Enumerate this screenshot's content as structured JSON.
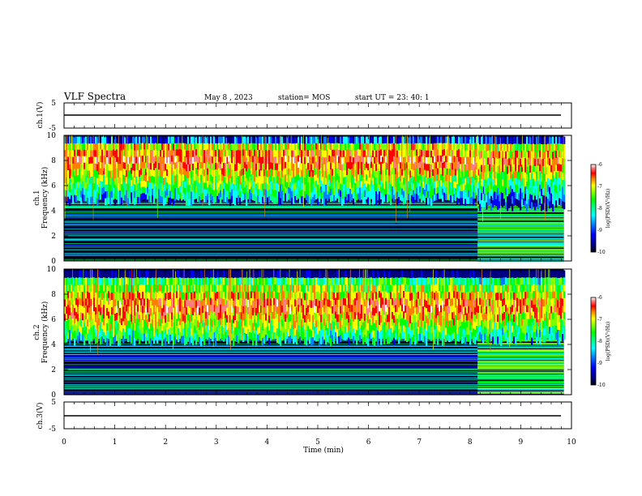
{
  "header": {
    "title": "VLF Spectra",
    "date": "May 8  , 2023",
    "station": "station= MOS",
    "start": "start  UT  =   23: 40: 1"
  },
  "chart_data": [
    {
      "type": "line",
      "panel": "ch1-waveform",
      "ylabel": "ch.1(V)",
      "ylim": [
        -5,
        5
      ],
      "yticks": [
        "5",
        "-5"
      ],
      "xlim": [
        0,
        10
      ],
      "series": [
        {
          "x": [
            0,
            9.8
          ],
          "y": [
            -0.6,
            -0.6
          ]
        }
      ]
    },
    {
      "type": "heatmap",
      "panel": "ch1-spectrogram",
      "ylabel": "ch.1\nFrequency (kHz)",
      "ylim": [
        0,
        10
      ],
      "yticks": [
        "0",
        "2",
        "4",
        "6",
        "8",
        "10"
      ],
      "xlim": [
        0,
        10
      ],
      "data_xmax": 9.85,
      "regime_change_min": 8.15,
      "band": {
        "before": [
          5,
          10
        ],
        "after": [
          4.5,
          10
        ]
      },
      "peak_kHz": 8.0,
      "colorbar": {
        "label": "log(PSD)(V²/Hz)",
        "range": [
          -10,
          -6
        ],
        "ticks": [
          "-6",
          "-7",
          "-8",
          "-9",
          "-10"
        ]
      }
    },
    {
      "type": "heatmap",
      "panel": "ch2-spectrogram",
      "ylabel": "ch.2\nFrequency (kHz)",
      "ylim": [
        0,
        10
      ],
      "yticks": [
        "0",
        "2",
        "4",
        "6",
        "8",
        "10"
      ],
      "xlim": [
        0,
        10
      ],
      "data_xmax": 9.85,
      "regime_change_min": 8.15,
      "band": {
        "before": [
          4.5,
          10
        ],
        "after": [
          4.5,
          10
        ]
      },
      "peak_kHz": 7.0,
      "colorbar": {
        "label": "log(PSD)(V²/Hz)",
        "range": [
          -10,
          -6
        ],
        "ticks": [
          "-6",
          "-7",
          "-8",
          "-9",
          "-10"
        ]
      }
    },
    {
      "type": "line",
      "panel": "ch3-waveform",
      "ylabel": "ch.3(V)",
      "ylim": [
        -5,
        5
      ],
      "yticks": [
        "5",
        "-5"
      ],
      "xlim": [
        0,
        10
      ],
      "series": [
        {
          "x": [
            0,
            9.8
          ],
          "y": [
            -0.6,
            -0.6
          ]
        }
      ]
    }
  ],
  "xaxis": {
    "label": "Time  (min)",
    "ticks": [
      "0",
      "1",
      "2",
      "3",
      "4",
      "5",
      "6",
      "7",
      "8",
      "9",
      "10"
    ]
  },
  "colormap": [
    "#000000",
    "#000080",
    "#0000ff",
    "#0080ff",
    "#00ffff",
    "#00ff80",
    "#00ff00",
    "#80ff00",
    "#ffff00",
    "#ff8000",
    "#ff0000",
    "#ff8080",
    "#ffffff"
  ]
}
